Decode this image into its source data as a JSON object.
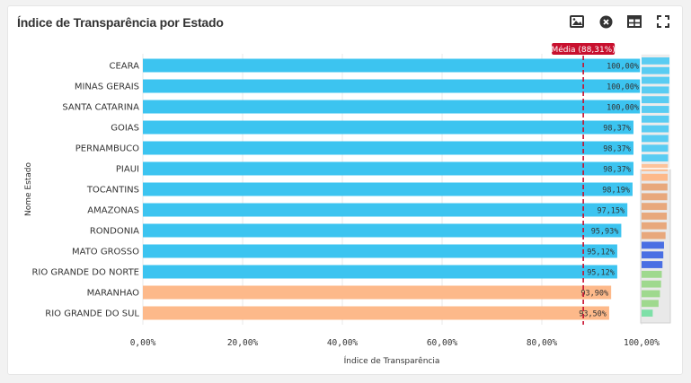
{
  "card": {
    "title": "Índice de Transparência por Estado"
  },
  "toolbar": [
    {
      "icon": "image-icon"
    },
    {
      "icon": "close-circle-icon"
    },
    {
      "icon": "table-icon"
    },
    {
      "icon": "fullscreen-icon"
    }
  ],
  "colors": {
    "above": "#3cc4f0",
    "below": "#fdb98a",
    "mean_line": "#c8102e",
    "mean_badge": "#c8102e"
  },
  "chart_data": {
    "type": "bar",
    "orientation": "horizontal",
    "xlabel": "Índice de Transparência",
    "ylabel": "Nome Estado",
    "xlim": [
      0,
      100
    ],
    "xticks": [
      "0,00%",
      "20,00%",
      "40,00%",
      "60,00%",
      "80,00%",
      "100,00%"
    ],
    "grid": true,
    "categories": [
      "CEARA",
      "MINAS GERAIS",
      "SANTA CATARINA",
      "GOIAS",
      "PERNAMBUCO",
      "PIAUI",
      "TOCANTINS",
      "AMAZONAS",
      "RONDONIA",
      "MATO GROSSO",
      "RIO GRANDE DO NORTE",
      "MARANHAO",
      "RIO GRANDE DO SUL"
    ],
    "values": [
      100.0,
      100.0,
      100.0,
      98.37,
      98.37,
      98.37,
      98.19,
      97.15,
      95.93,
      95.12,
      95.12,
      93.9,
      93.5
    ],
    "value_labels": [
      "100,00%",
      "100,00%",
      "100,00%",
      "98,37%",
      "98,37%",
      "98,37%",
      "98,19%",
      "97,15%",
      "95,93%",
      "95,12%",
      "95,12%",
      "93,90%",
      "93,50%"
    ],
    "mean": 88.31,
    "mean_label": "Média (88,31%)",
    "overview_values": [
      100,
      100,
      100,
      98.37,
      98.37,
      98.37,
      98.19,
      97.15,
      95.93,
      95.12,
      95.12,
      93.9,
      93.5,
      92.9,
      92.1,
      91.0,
      90.5,
      89.8,
      86.0,
      80.5,
      78.0,
      75.0,
      72.5,
      70.0,
      66.0,
      61.0,
      40.0
    ],
    "overview_colors": [
      "#3cc4f0",
      "#3cc4f0",
      "#3cc4f0",
      "#3cc4f0",
      "#3cc4f0",
      "#3cc4f0",
      "#3cc4f0",
      "#3cc4f0",
      "#3cc4f0",
      "#3cc4f0",
      "#3cc4f0",
      "#fdb98a",
      "#fdb98a",
      "#e8a87c",
      "#e8a87c",
      "#e8a87c",
      "#e8a87c",
      "#e8a87c",
      "#e8a87c",
      "#4a6fe3",
      "#4a6fe3",
      "#4a6fe3",
      "#9fd98e",
      "#9fd98e",
      "#9fd98e",
      "#9fd98e",
      "#7ee0a8"
    ]
  }
}
